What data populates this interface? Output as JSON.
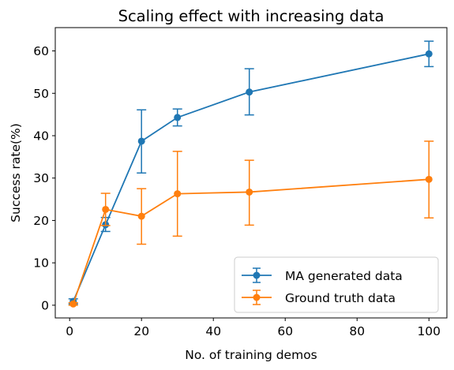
{
  "chart_data": {
    "type": "line",
    "title": "Scaling effect with increasing data",
    "xlabel": "No. of training demos",
    "ylabel": "Success rate(%)",
    "xlim": [
      -4,
      105
    ],
    "ylim": [
      -3,
      65.5
    ],
    "xticks": [
      0,
      20,
      40,
      60,
      80,
      100
    ],
    "yticks": [
      0,
      10,
      20,
      30,
      40,
      50,
      60
    ],
    "legend_position": "lower-right",
    "grid": false,
    "series": [
      {
        "name": "MA generated data",
        "color": "#1f77b4",
        "x": [
          1,
          10,
          20,
          30,
          50,
          100
        ],
        "y": [
          0.9,
          19.0,
          38.7,
          44.3,
          50.3,
          59.3
        ],
        "err_low": [
          0.3,
          17.4,
          31.2,
          42.3,
          44.9,
          56.3
        ],
        "err_high": [
          1.5,
          20.7,
          46.1,
          46.3,
          55.8,
          62.3
        ]
      },
      {
        "name": "Ground truth data",
        "color": "#ff7f0e",
        "x": [
          1,
          10,
          20,
          30,
          50,
          100
        ],
        "y": [
          0.3,
          22.6,
          21.0,
          26.3,
          26.7,
          29.7
        ],
        "err_low": [
          0.0,
          18.8,
          14.4,
          16.3,
          18.9,
          20.6
        ],
        "err_high": [
          0.6,
          26.4,
          27.5,
          36.3,
          34.2,
          38.7
        ]
      }
    ]
  }
}
